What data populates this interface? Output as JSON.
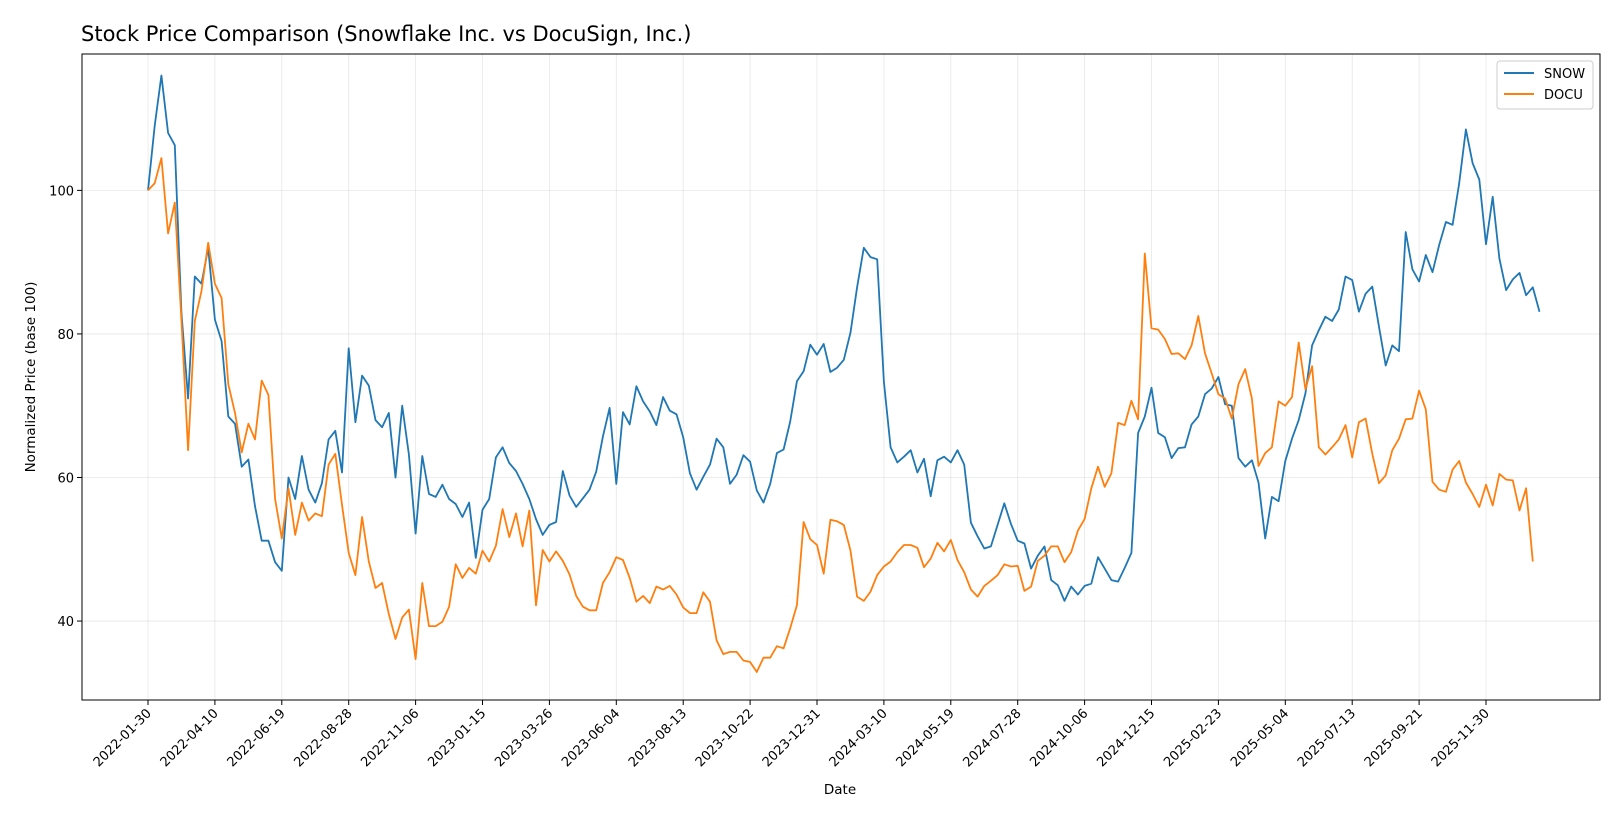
{
  "chart_data": {
    "type": "line",
    "title": "Stock Price Comparison (Snowflake Inc. vs DocuSign, Inc.)",
    "xlabel": "Date",
    "ylabel": "Normalized Price (base 100)",
    "ylim": [
      29,
      119
    ],
    "yticks": [
      40,
      60,
      80,
      100
    ],
    "grid": true,
    "legend_position": "top-right",
    "x_tick_labels": [
      "2022-01-30",
      "2022-04-10",
      "2022-06-19",
      "2022-08-28",
      "2022-11-06",
      "2023-01-15",
      "2023-03-26",
      "2023-06-04",
      "2023-08-13",
      "2023-10-22",
      "2023-12-31",
      "2024-03-10",
      "2024-05-19",
      "2024-07-28",
      "2024-10-06",
      "2024-12-15",
      "2025-02-23",
      "2025-05-04",
      "2025-07-13",
      "2025-09-21",
      "2025-11-30"
    ],
    "x_start": "2022-01-30",
    "x_step_days": 7,
    "series": [
      {
        "name": "SNOW",
        "color": "#1f77b4",
        "values": [
          100,
          109,
          116,
          108,
          106.3,
          83,
          71,
          88,
          87,
          92,
          82,
          79,
          68.5,
          67.5,
          61.5,
          62.5,
          56,
          51.2,
          51.2,
          48.2,
          47,
          60,
          57,
          63,
          58.3,
          56.5,
          59.2,
          65.3,
          66.5,
          60.7,
          78,
          67.7,
          74.2,
          72.8,
          68,
          67,
          69,
          60,
          70,
          63.2,
          52.2,
          63,
          57.7,
          57.3,
          59,
          57,
          56.3,
          54.5,
          56.5,
          48.8,
          55.5,
          57,
          62.8,
          64.2,
          62,
          60.9,
          59.1,
          57,
          54.2,
          52,
          53.4,
          53.8,
          60.9,
          57.5,
          55.9,
          57.1,
          58.3,
          60.8,
          65.7,
          69.7,
          59.1,
          69.1,
          67.4,
          72.7,
          70.6,
          69.2,
          67.3,
          71.2,
          69.3,
          68.8,
          65.6,
          60.6,
          58.3,
          60.1,
          61.8,
          65.4,
          64.2,
          59.1,
          60.4,
          63.1,
          62.2,
          58.2,
          56.5,
          59.1,
          63.4,
          63.9,
          67.8,
          73.4,
          74.8,
          78.5,
          77.1,
          78.6,
          74.7,
          75.3,
          76.4,
          80.2,
          86.5,
          92,
          90.7,
          90.4,
          73.3,
          64.2,
          62.1,
          62.9,
          63.8,
          60.7,
          62.6,
          57.4,
          62.4,
          62.9,
          62.1,
          63.8,
          61.8,
          53.7,
          51.8,
          50.1,
          50.4,
          53.4,
          56.4,
          53.5,
          51.2,
          50.8,
          47.3,
          49.1,
          50.4,
          45.7,
          45,
          42.8,
          44.8,
          43.7,
          44.9,
          45.2,
          48.9,
          47.3,
          45.7,
          45.5,
          47.4,
          49.5,
          66.2,
          68.5,
          72.5,
          66.2,
          65.6,
          62.7,
          64.1,
          64.2,
          67.4,
          68.5,
          71.6,
          72.4,
          74,
          70.2,
          70,
          62.7,
          61.5,
          62.4,
          59.3,
          51.5,
          57.3,
          56.7,
          62.3,
          65.4,
          68,
          71.7,
          78.4,
          80.5,
          82.4,
          81.8,
          83.4,
          88,
          87.5,
          83.1,
          85.6,
          86.6,
          81,
          75.6,
          78.4,
          77.6,
          94.2,
          89,
          87.3,
          91,
          88.6,
          92.4,
          95.6,
          95.2,
          101,
          108.5,
          103.8,
          101.5,
          92.5,
          99.1,
          90.5,
          86.1,
          87.6,
          88.5,
          85.4,
          86.5,
          83.1
        ]
      },
      {
        "name": "DOCU",
        "color": "#ff7f0e",
        "values": [
          100,
          101,
          104.5,
          94,
          98.3,
          82,
          63.8,
          81.8,
          86,
          92.7,
          87,
          85,
          73,
          69,
          63.5,
          67.5,
          65.3,
          73.5,
          71.5,
          57,
          51.5,
          58.5,
          52,
          56.5,
          54,
          55,
          54.6,
          61.8,
          63.3,
          56.2,
          49.5,
          46.4,
          54.5,
          48.3,
          44.6,
          45.3,
          41,
          37.5,
          40.5,
          41.6,
          34.7,
          45.3,
          39.3,
          39.3,
          39.9,
          42,
          47.9,
          46,
          47.4,
          46.6,
          49.8,
          48.3,
          50.5,
          55.6,
          51.7,
          55,
          50.4,
          55.4,
          42.2,
          49.9,
          48.3,
          49.7,
          48.4,
          46.5,
          43.5,
          42,
          41.5,
          41.5,
          45.3,
          46.8,
          48.9,
          48.5,
          46,
          42.7,
          43.5,
          42.5,
          44.8,
          44.4,
          44.9,
          43.7,
          41.9,
          41.1,
          41.1,
          44,
          42.7,
          37.3,
          35.4,
          35.7,
          35.7,
          34.5,
          34.3,
          32.9,
          34.9,
          34.9,
          36.5,
          36.2,
          39,
          42.2,
          53.8,
          51.4,
          50.6,
          46.6,
          54.1,
          53.9,
          53.4,
          49.8,
          43.4,
          42.8,
          44.1,
          46.4,
          47.6,
          48.3,
          49.6,
          50.6,
          50.6,
          50.2,
          47.5,
          48.7,
          50.9,
          49.7,
          51.3,
          48.5,
          46.8,
          44.4,
          43.4,
          44.9,
          45.6,
          46.4,
          47.9,
          47.6,
          47.7,
          44.2,
          44.8,
          48.4,
          49.1,
          50.4,
          50.4,
          48.2,
          49.6,
          52.6,
          54.2,
          58.5,
          61.5,
          58.7,
          60.6,
          67.6,
          67.3,
          70.7,
          68.1,
          91.2,
          80.8,
          80.6,
          79.3,
          77.2,
          77.3,
          76.5,
          78.4,
          82.5,
          77.3,
          74.5,
          71.6,
          71,
          68.2,
          73,
          75.1,
          71,
          61.6,
          63.4,
          64.2,
          70.6,
          70,
          71.2,
          78.8,
          72.3,
          75.5,
          64.2,
          63.2,
          64.2,
          65.3,
          67.3,
          62.8,
          67.7,
          68.2,
          63.3,
          59.2,
          60.3,
          63.8,
          65.4,
          68.1,
          68.2,
          72.1,
          69.5,
          59.4,
          58.3,
          58,
          61.1,
          62.3,
          59.3,
          57.7,
          55.9,
          59,
          56.1,
          60.5,
          59.7,
          59.6,
          55.4,
          58.5,
          48.3
        ]
      }
    ]
  }
}
